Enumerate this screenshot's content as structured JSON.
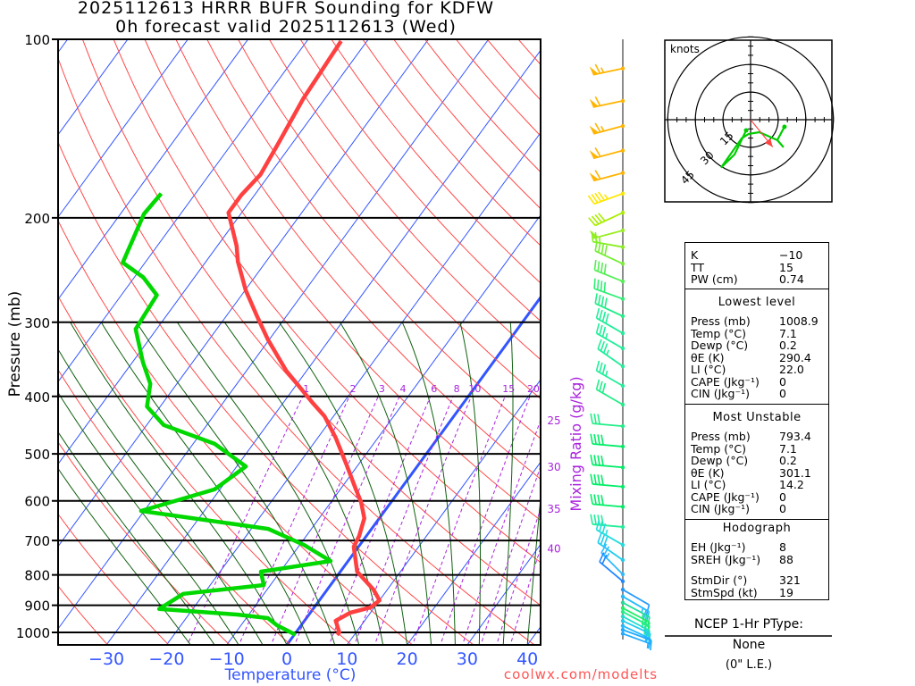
{
  "header": {
    "title_line1": "2025112613 HRRR BUFR Sounding for KDFW",
    "title_line2": "0h forecast valid 2025112613 (Wed)"
  },
  "colors": {
    "temperature": "#ff4040",
    "dewpoint": "#00d800",
    "isotherm": "#3355ff",
    "dry_adiabat": "#ff4a4a",
    "moist_adiabat": "#106010",
    "mixing_ratio": "#aa22dd",
    "footer": "#ff5555"
  },
  "chart_data": {
    "type": "line",
    "subtype": "skew-t log-p",
    "xlabel": "Temperature (°C)",
    "ylabel": "Pressure (mb)",
    "secondary_label": "Mixing Ratio (g/kg)",
    "x_ticks": [
      "−30",
      "−20",
      "−10",
      "0",
      "10",
      "20",
      "30",
      "40"
    ],
    "x_tick_values": [
      -30,
      -20,
      -10,
      0,
      10,
      20,
      30,
      40
    ],
    "y_ticks": [
      "100",
      "200",
      "300",
      "400",
      "500",
      "600",
      "700",
      "800",
      "900",
      "1000"
    ],
    "y_tick_values": [
      100,
      200,
      300,
      400,
      500,
      600,
      700,
      800,
      900,
      1000
    ],
    "ylim": [
      1050,
      100
    ],
    "xlim_at_bottom": [
      -38,
      42
    ],
    "mixing_ratio_top_labels": [
      "1",
      "2",
      "3",
      "4",
      "6",
      "8",
      "10",
      "15",
      "20"
    ],
    "mixing_ratio_top_values": [
      1,
      2,
      3,
      4,
      6,
      8,
      10,
      15,
      20
    ],
    "mixing_ratio_side_labels": [
      "25",
      "30",
      "35",
      "40"
    ],
    "mixing_ratio_side_values": [
      25,
      30,
      35,
      40
    ],
    "highlight_isotherm": 0,
    "series": [
      {
        "name": "Temperature",
        "points": [
          [
            1009,
            7.1
          ],
          [
            1000,
            7.2
          ],
          [
            956,
            5.2
          ],
          [
            927,
            6.6
          ],
          [
            907,
            9.4
          ],
          [
            883,
            10.0
          ],
          [
            847,
            7.7
          ],
          [
            790,
            2.8
          ],
          [
            717,
            -0.8
          ],
          [
            688,
            -1.2
          ],
          [
            642,
            -2.5
          ],
          [
            603,
            -5.0
          ],
          [
            574,
            -7.4
          ],
          [
            521,
            -12.0
          ],
          [
            470,
            -17.0
          ],
          [
            432,
            -21.5
          ],
          [
            409,
            -25.3
          ],
          [
            362,
            -33.4
          ],
          [
            321,
            -40.2
          ],
          [
            294,
            -44.7
          ],
          [
            265,
            -49.9
          ],
          [
            237,
            -54.7
          ],
          [
            223,
            -56.8
          ],
          [
            196,
            -62.2
          ],
          [
            183,
            -62.2
          ],
          [
            169,
            -61.5
          ],
          [
            150,
            -62.3
          ],
          [
            126,
            -63.6
          ],
          [
            100.7,
            -64.3
          ]
        ]
      },
      {
        "name": "Dewpoint",
        "points": [
          [
            1009,
            0.2
          ],
          [
            973,
            -4.0
          ],
          [
            946,
            -6.4
          ],
          [
            933,
            -12.0
          ],
          [
            913,
            -25.6
          ],
          [
            861,
            -23.4
          ],
          [
            832,
            -11.1
          ],
          [
            790,
            -13.2
          ],
          [
            758,
            -2.9
          ],
          [
            712,
            -9.3
          ],
          [
            669,
            -17.2
          ],
          [
            624,
            -40.5
          ],
          [
            574,
            -30.9
          ],
          [
            525,
            -28.5
          ],
          [
            481,
            -36.4
          ],
          [
            447,
            -47.2
          ],
          [
            416,
            -52.2
          ],
          [
            381,
            -54.4
          ],
          [
            350,
            -58.3
          ],
          [
            308,
            -63.5
          ],
          [
            270,
            -64.1
          ],
          [
            252,
            -68.5
          ],
          [
            238,
            -73.7
          ],
          [
            197,
            -76.1
          ],
          [
            182,
            -75.7
          ]
        ]
      }
    ],
    "wind_barbs": [
      [
        112,
        258,
        65,
        "#ffb400"
      ],
      [
        127,
        258,
        60,
        "#ffb400"
      ],
      [
        140,
        255,
        65,
        "#ffb400"
      ],
      [
        154,
        255,
        60,
        "#ffb400"
      ],
      [
        168,
        255,
        60,
        "#ffb400"
      ],
      [
        182,
        250,
        45,
        "#ffe600"
      ],
      [
        196,
        245,
        40,
        "#aaee00"
      ],
      [
        210,
        255,
        50,
        "#99ee22"
      ],
      [
        224,
        280,
        25,
        "#88ee22"
      ],
      [
        239,
        295,
        40,
        "#77ee33"
      ],
      [
        256,
        292,
        40,
        "#55ee55"
      ],
      [
        274,
        290,
        40,
        "#33ee77"
      ],
      [
        293,
        295,
        40,
        "#22ee88"
      ],
      [
        313,
        300,
        40,
        "#22ee99"
      ],
      [
        332,
        300,
        35,
        "#22ee99"
      ],
      [
        356,
        305,
        35,
        "#22ee99"
      ],
      [
        384,
        300,
        35,
        "#22ee99"
      ],
      [
        413,
        300,
        30,
        "#22ee88"
      ],
      [
        449,
        275,
        30,
        "#22ee88"
      ],
      [
        486,
        275,
        40,
        "#00ee66"
      ],
      [
        527,
        275,
        40,
        "#00ee66"
      ],
      [
        568,
        275,
        40,
        "#00ee66"
      ],
      [
        614,
        275,
        40,
        "#00ee66"
      ],
      [
        664,
        275,
        40,
        "#22ee99"
      ],
      [
        712,
        300,
        35,
        "#22dddd"
      ],
      [
        755,
        305,
        30,
        "#22ccee"
      ],
      [
        798,
        315,
        25,
        "#33bbff"
      ],
      [
        820,
        310,
        20,
        "#2288ff"
      ],
      [
        847,
        120,
        10,
        "#2299ff"
      ],
      [
        870,
        120,
        25,
        "#22bbff"
      ],
      [
        891,
        118,
        25,
        "#22dd99"
      ],
      [
        910,
        118,
        25,
        "#22ee66"
      ],
      [
        923,
        118,
        25,
        "#22ee88"
      ],
      [
        940,
        118,
        20,
        "#22ddcc"
      ],
      [
        956,
        115,
        20,
        "#22ccee"
      ],
      [
        975,
        115,
        15,
        "#22bbff"
      ],
      [
        990,
        110,
        10,
        "#22aaff"
      ],
      [
        1005,
        110,
        5,
        "#22aaff"
      ]
    ]
  },
  "hodograph": {
    "units_label": "knots",
    "ring_labels": [
      "15",
      "30",
      "45"
    ],
    "ring_values": [
      15,
      30,
      45
    ],
    "trace_uv_kt": [
      [
        -2.4,
        -5.8
      ],
      [
        -8.7,
        -18.9
      ],
      [
        -16,
        -26
      ],
      [
        -4.8,
        -10.1
      ],
      [
        -1,
        -7.7
      ],
      [
        4.8,
        -6.8
      ],
      [
        14.5,
        -11.1
      ],
      [
        17.9,
        -15
      ],
      [
        14.5,
        -11.1
      ],
      [
        18.4,
        -3.9
      ]
    ],
    "storm_motion_uv_kt": [
      12,
      -14.8
    ]
  },
  "stats": {
    "indices": [
      {
        "label": "K",
        "value": "−10"
      },
      {
        "label": "TT",
        "value": "15"
      },
      {
        "label": "PW (cm)",
        "value": "0.74"
      }
    ],
    "sections": [
      {
        "title": "Lowest level",
        "rows": [
          {
            "label": "Press (mb)",
            "value": "1008.9"
          },
          {
            "label": "Temp (°C)",
            "value": "7.1"
          },
          {
            "label": "Dewp (°C)",
            "value": "0.2"
          },
          {
            "label": "θE (K)",
            "value": "290.4"
          },
          {
            "label": "LI (°C)",
            "value": "22.0"
          },
          {
            "label": "CAPE (Jkg⁻¹)",
            "value": "0"
          },
          {
            "label": "CIN (Jkg⁻¹)",
            "value": "0"
          }
        ]
      },
      {
        "title": "Most Unstable",
        "rows": [
          {
            "label": "Press (mb)",
            "value": "793.4"
          },
          {
            "label": "Temp (°C)",
            "value": "7.1"
          },
          {
            "label": "Dewp (°C)",
            "value": "0.2"
          },
          {
            "label": "θE (K)",
            "value": "301.1"
          },
          {
            "label": "LI (°C)",
            "value": "14.2"
          },
          {
            "label": "CAPE (Jkg⁻¹)",
            "value": "0"
          },
          {
            "label": "CIN (Jkg⁻¹)",
            "value": "0"
          }
        ]
      },
      {
        "title": "Hodograph",
        "rows": [
          {
            "label": "EH (Jkg⁻¹)",
            "value": "8"
          },
          {
            "label": "SREH (Jkg⁻¹)",
            "value": "88"
          },
          {
            "label": "StmDir (°)",
            "value": "321"
          },
          {
            "label": "StmSpd (kt)",
            "value": "19"
          }
        ]
      }
    ]
  },
  "ptype": {
    "title": "NCEP 1-Hr PType:",
    "value": "None",
    "note": "(0\" L.E.)"
  },
  "footer": {
    "credit": "coolwx.com/modelts"
  }
}
